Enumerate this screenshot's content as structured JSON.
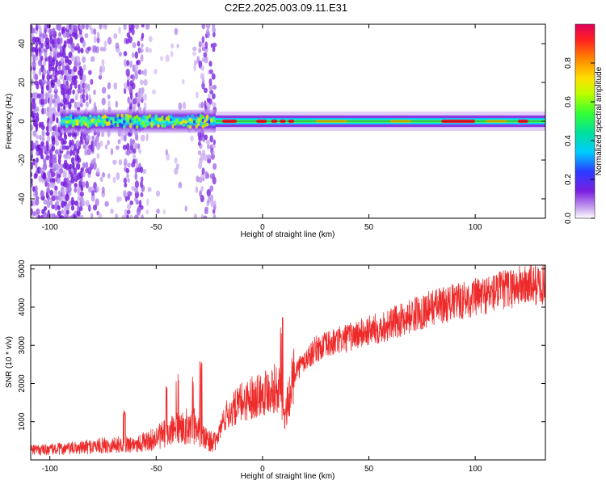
{
  "page": {
    "title": "C2E2.2025.003.09.11.E31"
  },
  "colors": {
    "snr_line": "#ee2b2b",
    "axes": "#000000",
    "background": "#ffffff",
    "colormap": [
      "#ffffff",
      "#c9a8f0",
      "#7a1ee0",
      "#2a3cff",
      "#00ccff",
      "#33ff88",
      "#88ff00",
      "#ffe000",
      "#ff8800",
      "#ff2020",
      "#e0005a"
    ]
  },
  "chart_data": [
    {
      "type": "heatmap",
      "name": "spectrogram",
      "title": "C2E2.2025.003.09.11.E31",
      "xlabel": "Height of straight line (km)",
      "ylabel": "Frequency (Hz)",
      "xlim": [
        -109,
        133
      ],
      "ylim": [
        -50,
        50
      ],
      "xticks": [
        -100,
        -50,
        0,
        50,
        100
      ],
      "yticks": [
        -40,
        -20,
        0,
        20,
        40
      ],
      "colorbar": {
        "label": "Normalized spectral amplitude",
        "range": [
          0,
          1
        ],
        "ticks": [
          "0.0",
          "0.2",
          "0.4",
          "0.6",
          "0.8"
        ]
      },
      "features": [
        {
          "region_km": [
            -109,
            -22
          ],
          "description": "broadband scattered purple noise; strong band near 0 Hz"
        },
        {
          "region_km": [
            -22,
            133
          ],
          "description": "narrow band centered at 0 Hz, high amplitude"
        }
      ]
    },
    {
      "type": "line",
      "name": "snr",
      "xlabel": "Height of straight line (km)",
      "ylabel": "SNR (10 * v/v)",
      "xlim": [
        -109,
        133
      ],
      "ylim": [
        0,
        5100
      ],
      "xticks": [
        -100,
        -50,
        0,
        50,
        100
      ],
      "yticks": [
        1000,
        2000,
        3000,
        4000,
        5000
      ],
      "trend": {
        "x": [
          -109,
          -90,
          -75,
          -60,
          -52,
          -45,
          -38,
          -32,
          -27,
          -22,
          -18,
          -10,
          -3,
          5,
          8,
          10,
          15,
          25,
          40,
          60,
          80,
          100,
          120,
          133
        ],
        "y": [
          250,
          300,
          380,
          420,
          520,
          700,
          850,
          900,
          550,
          450,
          1100,
          1500,
          1700,
          1900,
          1800,
          1000,
          2300,
          2900,
          3200,
          3550,
          4000,
          4250,
          4550,
          4600
        ]
      },
      "spikes": [
        {
          "x": -65,
          "y": 1300
        },
        {
          "x": -45,
          "y": 2000
        },
        {
          "x": -40,
          "y": 2250
        },
        {
          "x": -33,
          "y": 2200
        },
        {
          "x": -29,
          "y": 2650
        },
        {
          "x": 9,
          "y": 3850
        }
      ]
    }
  ]
}
